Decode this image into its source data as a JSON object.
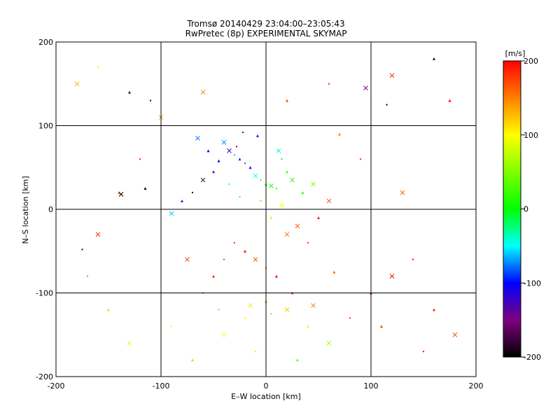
{
  "chart_data": {
    "type": "scatter",
    "title": "Tromsø 20140429 23:04:00–23:05:43",
    "subtitle": "RwPretec (8p) EXPERIMENTAL SKYMAP",
    "xlabel": "E–W location [km]",
    "ylabel": "N–S location [km]",
    "xlim": [
      -200,
      200
    ],
    "ylim": [
      -200,
      200
    ],
    "x_ticks": [
      "-200",
      "-100",
      "0",
      "100",
      "200"
    ],
    "y_ticks": [
      "-200",
      "-100",
      "0",
      "100",
      "200"
    ],
    "grid": true,
    "colorbar": {
      "label": "[m/s]",
      "range": [
        -200,
        200
      ],
      "ticks": [
        "200",
        "100",
        "0",
        "-100",
        "-200"
      ],
      "colormap": "black-purple-blue-cyan-green-yellow-orange-red"
    },
    "markers": [
      "dot",
      "triangle",
      "cross"
    ],
    "points": [
      [
        -30,
        65,
        -60
      ],
      [
        -25,
        60,
        -90
      ],
      [
        -35,
        70,
        -120
      ],
      [
        -20,
        55,
        -80
      ],
      [
        -15,
        50,
        -100
      ],
      [
        -40,
        80,
        -70
      ],
      [
        -28,
        75,
        -140
      ],
      [
        -45,
        58,
        -110
      ],
      [
        -10,
        40,
        -50
      ],
      [
        -5,
        35,
        -20
      ],
      [
        0,
        30,
        0
      ],
      [
        5,
        28,
        10
      ],
      [
        10,
        25,
        20
      ],
      [
        -50,
        45,
        -150
      ],
      [
        -60,
        35,
        -180
      ],
      [
        -70,
        20,
        -200
      ],
      [
        -80,
        10,
        -90
      ],
      [
        -90,
        -5,
        -60
      ],
      [
        15,
        60,
        -10
      ],
      [
        20,
        45,
        30
      ],
      [
        25,
        35,
        15
      ],
      [
        -22,
        92,
        -160
      ],
      [
        -8,
        88,
        -130
      ],
      [
        12,
        70,
        -40
      ],
      [
        -30,
        -40,
        180
      ],
      [
        -20,
        -50,
        190
      ],
      [
        -10,
        -60,
        170
      ],
      [
        0,
        -70,
        160
      ],
      [
        10,
        -80,
        200
      ],
      [
        20,
        -30,
        150
      ],
      [
        -40,
        -60,
        175
      ],
      [
        -50,
        -80,
        185
      ],
      [
        30,
        -20,
        165
      ],
      [
        40,
        -40,
        180
      ],
      [
        50,
        -10,
        190
      ],
      [
        60,
        10,
        170
      ],
      [
        -60,
        -100,
        160
      ],
      [
        0,
        -110,
        140
      ],
      [
        20,
        -120,
        120
      ],
      [
        -20,
        -130,
        110
      ],
      [
        40,
        -140,
        90
      ],
      [
        60,
        -160,
        60
      ],
      [
        -10,
        -170,
        80
      ],
      [
        30,
        -180,
        40
      ],
      [
        -40,
        -150,
        100
      ],
      [
        80,
        -130,
        180
      ],
      [
        100,
        -100,
        190
      ],
      [
        120,
        -80,
        195
      ],
      [
        140,
        -60,
        200
      ],
      [
        160,
        -120,
        185
      ],
      [
        180,
        -150,
        170
      ],
      [
        150,
        -170,
        195
      ],
      [
        110,
        -140,
        175
      ],
      [
        130,
        20,
        160
      ],
      [
        90,
        60,
        180
      ],
      [
        70,
        90,
        150
      ],
      [
        -100,
        110,
        140
      ],
      [
        -120,
        60,
        190
      ],
      [
        -140,
        20,
        160
      ],
      [
        -160,
        -30,
        180
      ],
      [
        -170,
        -80,
        150
      ],
      [
        -150,
        -120,
        120
      ],
      [
        -130,
        -160,
        90
      ],
      [
        -90,
        -140,
        80
      ],
      [
        -70,
        -180,
        60
      ],
      [
        -180,
        150,
        130
      ],
      [
        -160,
        170,
        110
      ],
      [
        160,
        180,
        -180
      ],
      [
        120,
        160,
        190
      ],
      [
        60,
        150,
        180
      ],
      [
        20,
        130,
        170
      ],
      [
        -60,
        140,
        150
      ],
      [
        -110,
        130,
        -190
      ],
      [
        -130,
        140,
        -170
      ],
      [
        95,
        145,
        -150
      ],
      [
        115,
        125,
        -200
      ],
      [
        -115,
        25,
        -200
      ],
      [
        -138,
        18,
        -200
      ],
      [
        -175,
        -48,
        -190
      ],
      [
        175,
        130,
        200
      ],
      [
        -15,
        -115,
        110
      ],
      [
        5,
        -125,
        130
      ],
      [
        25,
        -100,
        170
      ],
      [
        45,
        -115,
        150
      ],
      [
        -45,
        -120,
        140
      ],
      [
        65,
        -75,
        160
      ],
      [
        -75,
        -60,
        175
      ],
      [
        -5,
        10,
        40
      ],
      [
        5,
        -10,
        80
      ],
      [
        15,
        5,
        100
      ],
      [
        -25,
        15,
        -30
      ],
      [
        35,
        20,
        20
      ],
      [
        45,
        30,
        50
      ],
      [
        -35,
        30,
        -40
      ],
      [
        -55,
        70,
        -100
      ],
      [
        -65,
        85,
        -80
      ]
    ]
  }
}
